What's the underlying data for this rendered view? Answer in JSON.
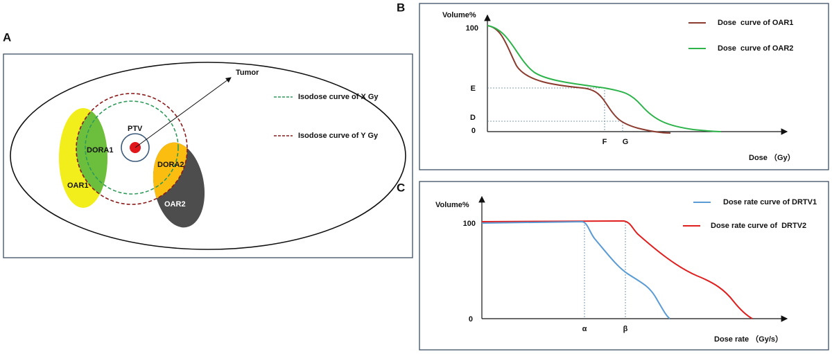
{
  "panel_a": {
    "label": "A",
    "regions": [
      "OAR1",
      "DORA1",
      "PTV",
      "DORA2",
      "OAR2"
    ],
    "pointer": "Tumor",
    "legend": [
      "Isodose curve of X Gy",
      "Isodose curve of Y Gy"
    ]
  },
  "panel_b": {
    "label": "B",
    "y_axis_title": "Volume%",
    "y_labels": [
      "100",
      "E",
      "D",
      "0"
    ],
    "x_labels": [
      "F",
      "G"
    ],
    "x_axis_title": "Dose （Gy）",
    "legend": [
      "Dose  curve of OAR1",
      "Dose  curve of OAR2"
    ]
  },
  "panel_c": {
    "label": "C",
    "y_axis_title": "Volume%",
    "y_labels": [
      "100",
      "0"
    ],
    "x_labels": [
      "α",
      "β"
    ],
    "x_axis_title": "Dose rate （Gy/s）",
    "legend": [
      "Dose rate curve of DRTV1",
      "Dose rate curve of  DRTV2"
    ]
  }
}
